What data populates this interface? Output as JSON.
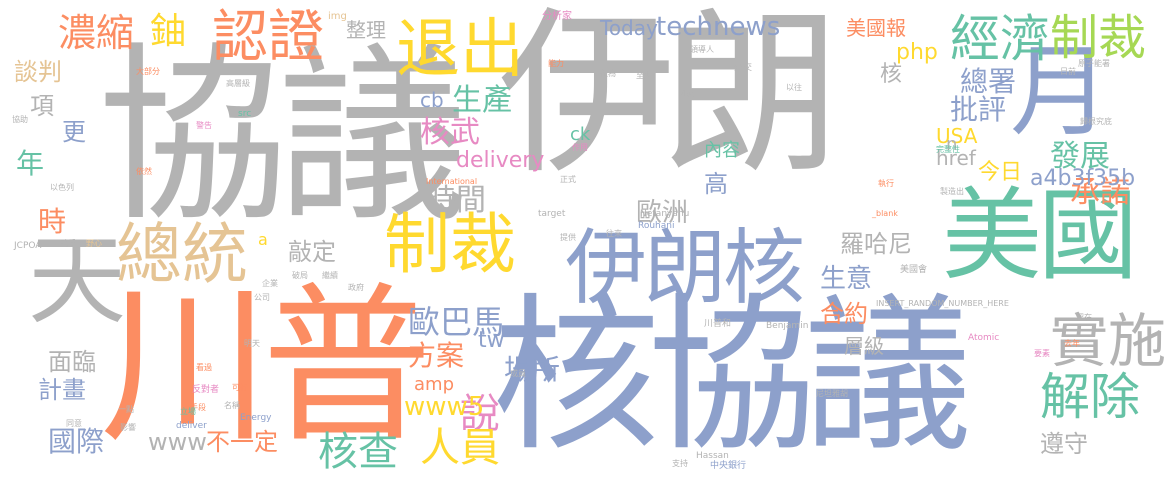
{
  "cloud": {
    "words": [
      {
        "text": "伊朗",
        "color": "gray"
      },
      {
        "text": "協議",
        "color": "gray"
      },
      {
        "text": "核協議",
        "color": "blue"
      },
      {
        "text": "川普",
        "color": "orange"
      },
      {
        "text": "美國",
        "color": "green"
      },
      {
        "text": "伊朗核",
        "color": "blue"
      },
      {
        "text": "制裁",
        "color": "yellow"
      },
      {
        "text": "總統",
        "color": "tan"
      },
      {
        "text": "退出",
        "color": "yellow"
      },
      {
        "text": "認證",
        "color": "orange"
      },
      {
        "text": "實施",
        "color": "gray"
      },
      {
        "text": "解除",
        "color": "green"
      },
      {
        "text": "天",
        "color": "gray"
      },
      {
        "text": "月",
        "color": "blue"
      },
      {
        "text": "經濟",
        "color": "green"
      },
      {
        "text": "制裁",
        "color": "lime"
      },
      {
        "text": "濃縮",
        "color": "orange"
      },
      {
        "text": "鈾",
        "color": "yellow"
      },
      {
        "text": "technews",
        "color": "blue"
      },
      {
        "text": "核查",
        "color": "green"
      },
      {
        "text": "說",
        "color": "pink"
      },
      {
        "text": "人員",
        "color": "yellow"
      },
      {
        "text": "國際",
        "color": "blue"
      },
      {
        "text": "歐巴馬",
        "color": "blue"
      },
      {
        "text": "核武",
        "color": "pink"
      },
      {
        "text": "生產",
        "color": "green"
      },
      {
        "text": "時間",
        "color": "gray"
      },
      {
        "text": "發展",
        "color": "green"
      },
      {
        "text": "承諾",
        "color": "orange"
      },
      {
        "text": "總署",
        "color": "blue"
      },
      {
        "text": "批評",
        "color": "blue"
      },
      {
        "text": "www5",
        "color": "yellow"
      },
      {
        "text": "www",
        "color": "gray"
      },
      {
        "text": "不一定",
        "color": "orange"
      },
      {
        "text": "場所",
        "color": "blue"
      },
      {
        "text": "方案",
        "color": "orange"
      },
      {
        "text": "面臨",
        "color": "gray"
      },
      {
        "text": "計畫",
        "color": "blue"
      },
      {
        "text": "生意",
        "color": "blue"
      },
      {
        "text": "a4b3f35b",
        "color": "blue"
      },
      {
        "text": "歐洲",
        "color": "gray"
      },
      {
        "text": "羅哈尼",
        "color": "gray"
      },
      {
        "text": "合約",
        "color": "orange"
      },
      {
        "text": "敲定",
        "color": "gray"
      },
      {
        "text": "遵守",
        "color": "gray"
      },
      {
        "text": "delivery",
        "color": "pink"
      },
      {
        "text": "年",
        "color": "green"
      },
      {
        "text": "時",
        "color": "orange"
      },
      {
        "text": "更",
        "color": "blue"
      },
      {
        "text": "項",
        "color": "gray"
      },
      {
        "text": "談判",
        "color": "tan"
      },
      {
        "text": "今日",
        "color": "yellow"
      },
      {
        "text": "高",
        "color": "blue"
      },
      {
        "text": "美國報",
        "color": "orange"
      },
      {
        "text": "php",
        "color": "yellow"
      },
      {
        "text": "整理",
        "color": "gray"
      },
      {
        "text": "Today",
        "color": "blue"
      },
      {
        "text": "USA",
        "color": "yellow"
      },
      {
        "text": "href",
        "color": "gray"
      },
      {
        "text": "內容",
        "color": "green"
      },
      {
        "text": "cb",
        "color": "blue"
      },
      {
        "text": "ck",
        "color": "green"
      },
      {
        "text": "amp",
        "color": "orange"
      },
      {
        "text": "tw",
        "color": "blue"
      },
      {
        "text": "層級",
        "color": "gray"
      },
      {
        "text": "核",
        "color": "gray"
      },
      {
        "text": "n",
        "color": "gray"
      },
      {
        "text": "a",
        "color": "yellow"
      },
      {
        "text": "img",
        "color": "tan"
      },
      {
        "text": "分析家",
        "color": "pink"
      },
      {
        "text": "外交",
        "color": "gray"
      },
      {
        "text": "Netanyahu",
        "color": "gray"
      },
      {
        "text": "Rouhani",
        "color": "blue"
      },
      {
        "text": "INSERT_RANDOM_NUMBER_HERE",
        "color": "gray"
      },
      {
        "text": "International",
        "color": "orange"
      },
      {
        "text": "Benjamin",
        "color": "gray"
      },
      {
        "text": "Hassan",
        "color": "gray"
      },
      {
        "text": "Energy",
        "color": "blue"
      },
      {
        "text": "JCPOA",
        "color": "gray"
      },
      {
        "text": "Atomic",
        "color": "pink"
      },
      {
        "text": "target",
        "color": "gray"
      },
      {
        "text": "_blank",
        "color": "orange"
      },
      {
        "text": "src",
        "color": "green"
      },
      {
        "text": "deliver",
        "color": "blue"
      },
      {
        "text": "中央銀行",
        "color": "blue"
      },
      {
        "text": "尼坦雅胡",
        "color": "gray"
      },
      {
        "text": "川普和",
        "color": "gray"
      },
      {
        "text": "美國會",
        "color": "gray"
      },
      {
        "text": "大部分",
        "color": "orange"
      },
      {
        "text": "高層級",
        "color": "gray"
      },
      {
        "text": "以色列",
        "color": "gray"
      },
      {
        "text": "反對者",
        "color": "pink"
      },
      {
        "text": "完整性",
        "color": "green"
      },
      {
        "text": "製造出",
        "color": "gray"
      },
      {
        "text": "歸根究底",
        "color": "gray"
      },
      {
        "text": "領導人",
        "color": "gray"
      },
      {
        "text": "原子能署",
        "color": "gray"
      },
      {
        "text": "一點",
        "color": "gray"
      },
      {
        "text": "政府",
        "color": "gray"
      },
      {
        "text": "企業",
        "color": "gray"
      },
      {
        "text": "公司",
        "color": "gray"
      },
      {
        "text": "戰爭",
        "color": "gray"
      },
      {
        "text": "野心",
        "color": "tan"
      },
      {
        "text": "警告",
        "color": "pink"
      },
      {
        "text": "同意",
        "color": "gray"
      },
      {
        "text": "影響",
        "color": "gray"
      },
      {
        "text": "成員",
        "color": "gray"
      },
      {
        "text": "支持",
        "color": "gray"
      },
      {
        "text": "國家",
        "color": "gray"
      },
      {
        "text": "以往",
        "color": "gray"
      },
      {
        "text": "日前",
        "color": "gray"
      },
      {
        "text": "執行",
        "color": "orange"
      },
      {
        "text": "留在",
        "color": "gray"
      },
      {
        "text": "去年",
        "color": "orange"
      },
      {
        "text": "要素",
        "color": "pink"
      },
      {
        "text": "提供",
        "color": "gray"
      },
      {
        "text": "正式",
        "color": "gray"
      },
      {
        "text": "往來",
        "color": "gray"
      },
      {
        "text": "作用",
        "color": "pink"
      },
      {
        "text": "依然",
        "color": "orange"
      },
      {
        "text": "協助",
        "color": "gray"
      },
      {
        "text": "手段",
        "color": "orange"
      },
      {
        "text": "可行",
        "color": "orange"
      },
      {
        "text": "立場",
        "color": "green"
      },
      {
        "text": "名稱",
        "color": "gray"
      },
      {
        "text": "看過",
        "color": "orange"
      },
      {
        "text": "破局",
        "color": "gray"
      },
      {
        "text": "繼續",
        "color": "gray"
      },
      {
        "text": "明天",
        "color": "gray"
      },
      {
        "text": "能力",
        "color": "orange"
      },
      {
        "text": "做為",
        "color": "gray"
      },
      {
        "text": "至少",
        "color": "gray"
      }
    ]
  }
}
